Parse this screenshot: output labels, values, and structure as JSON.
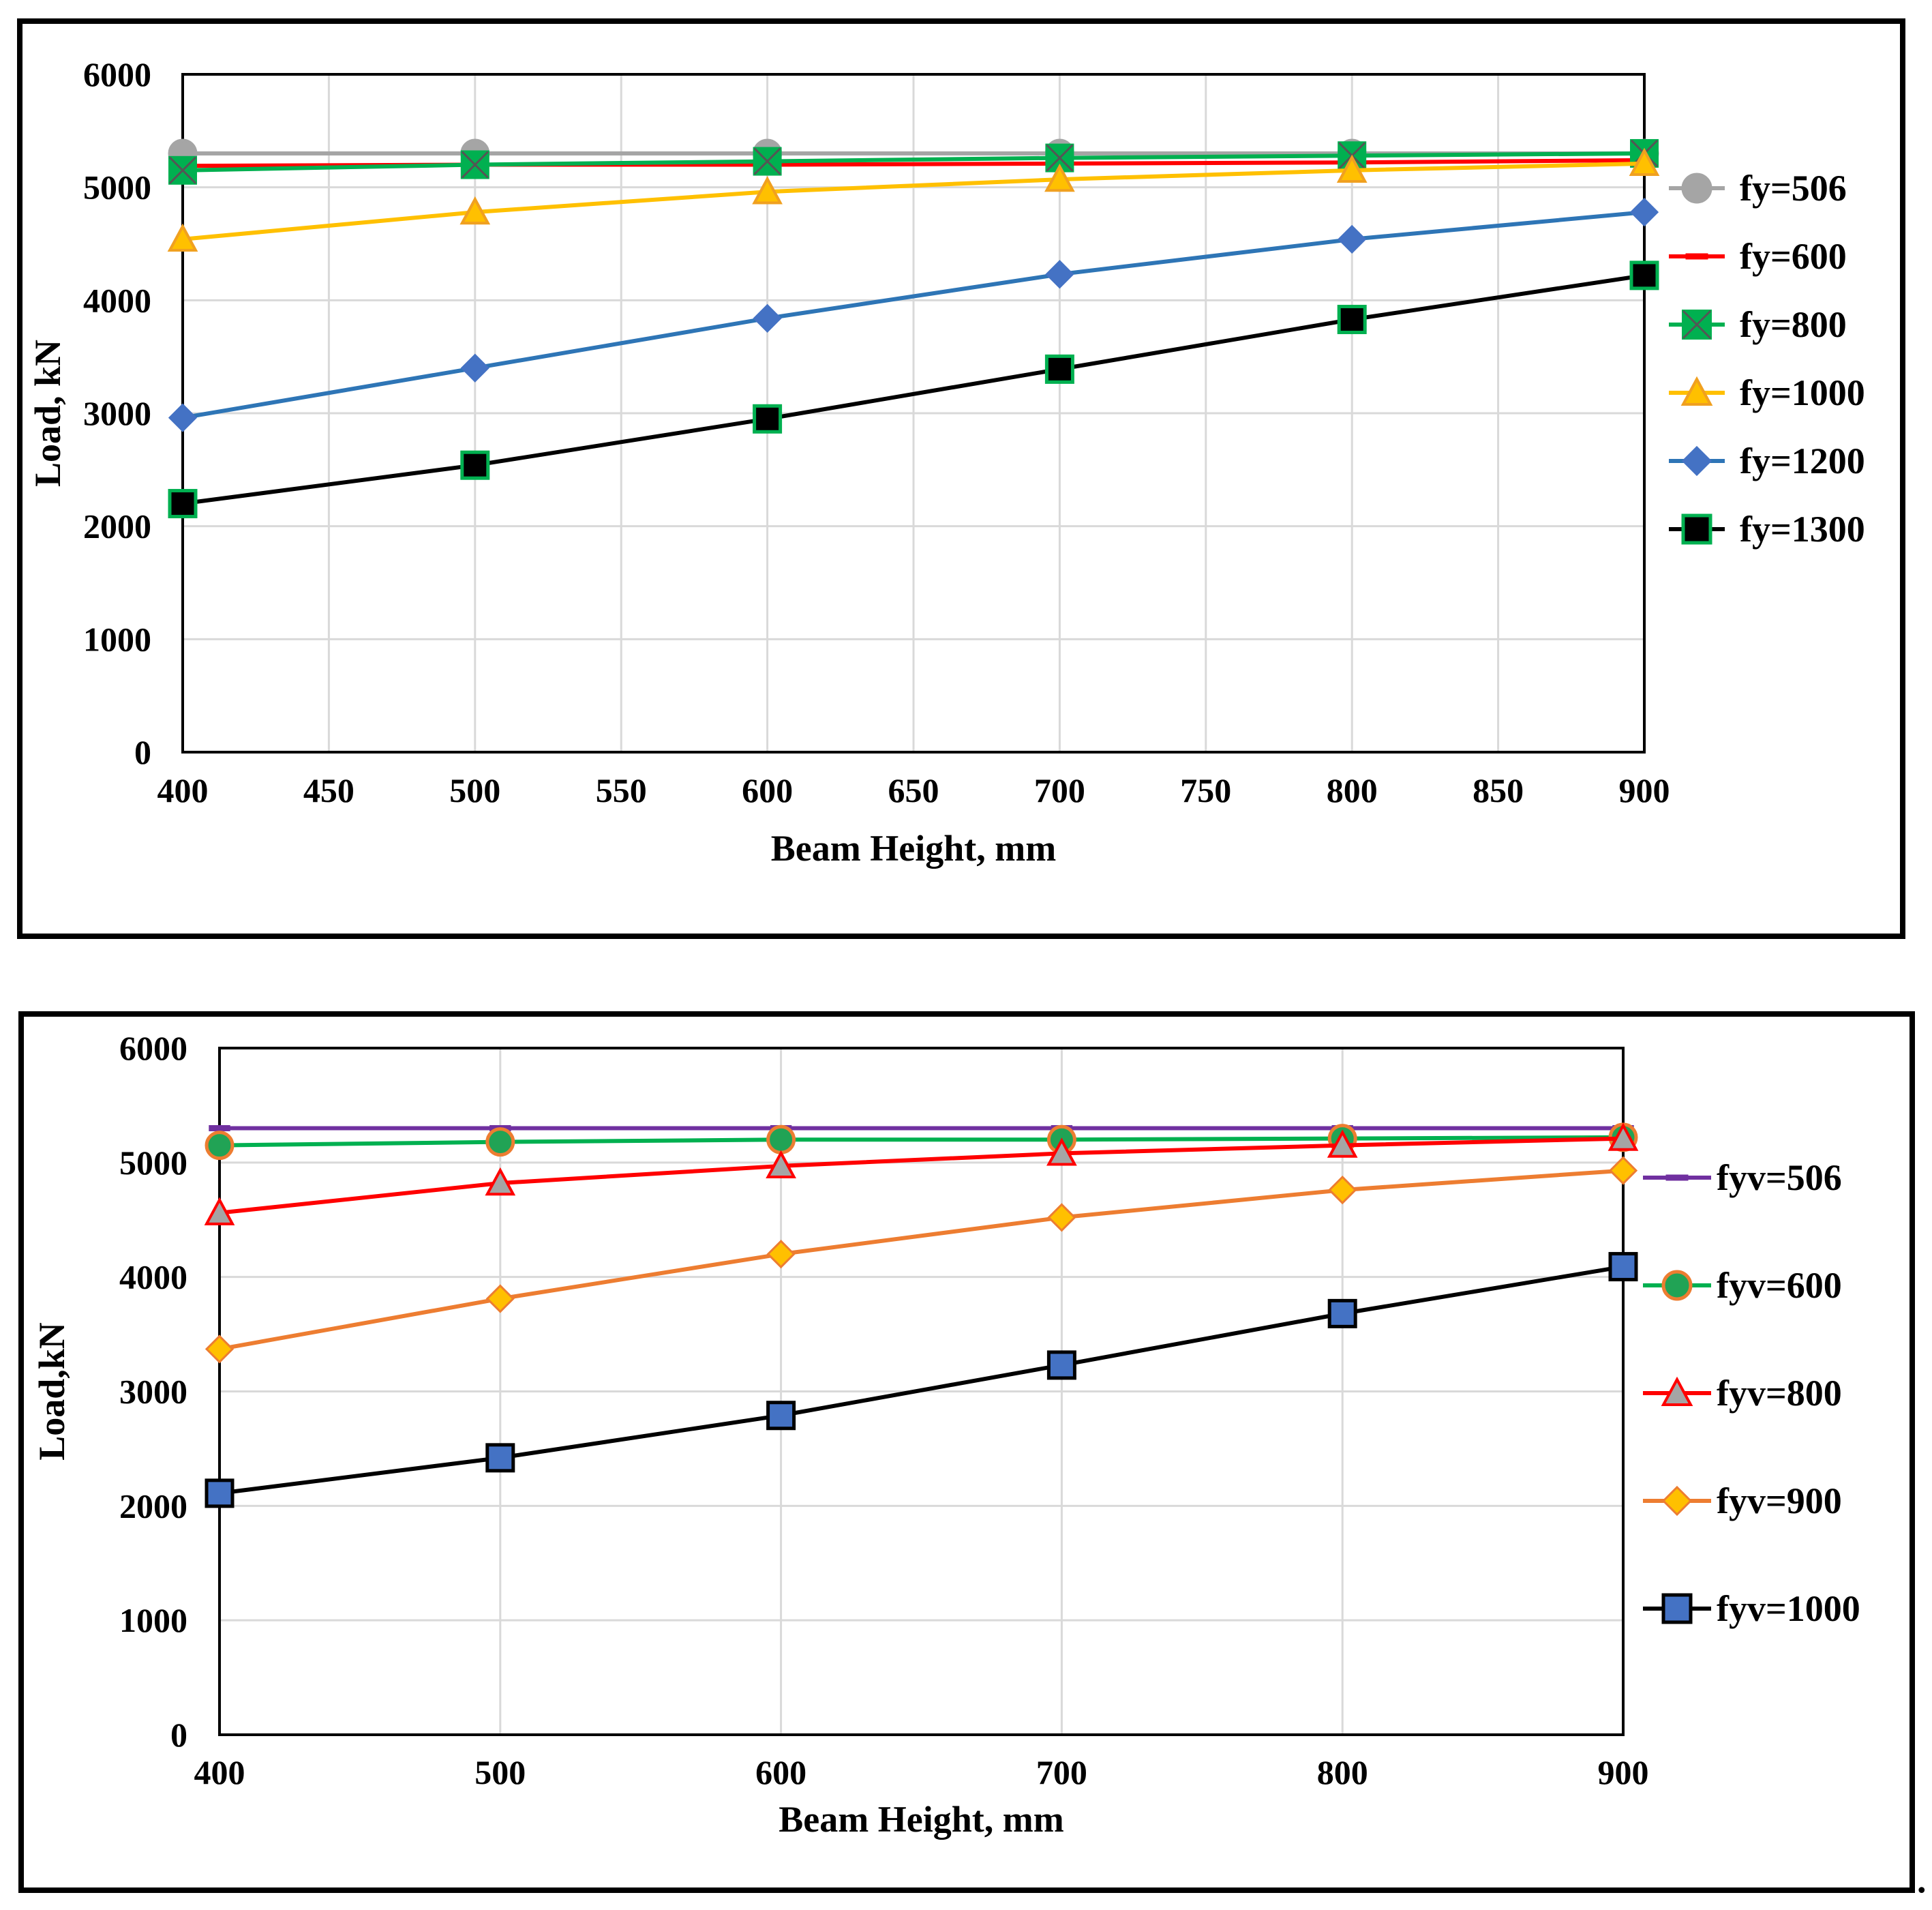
{
  "colors": {
    "gray": "#a5a5a5",
    "red": "#ff0000",
    "green": "#00b050",
    "green_marker": "#21a355",
    "yellow": "#ffc000",
    "orange_marker": "#f0a020",
    "blue": "#2e75b6",
    "blue_marker": "#4472c4",
    "black": "#000000",
    "purple": "#7030a0",
    "orange": "#ed7d31",
    "grid": "#d9d9d9"
  },
  "trailing_mark": ".",
  "chart_data": [
    {
      "type": "line",
      "xlabel": "Beam Height, mm",
      "ylabel": "Load, kN",
      "xlim": [
        400,
        900
      ],
      "ylim": [
        0,
        6000
      ],
      "x_ticks": [
        "400",
        "450",
        "500",
        "550",
        "600",
        "650",
        "700",
        "750",
        "800",
        "850",
        "900"
      ],
      "y_ticks": [
        "0",
        "1000",
        "2000",
        "3000",
        "4000",
        "5000",
        "6000"
      ],
      "grid": true,
      "legend_position": "right",
      "x": [
        400,
        500,
        600,
        700,
        800,
        900
      ],
      "series": [
        {
          "name": "fy=506",
          "values": [
            5300,
            5300,
            5300,
            5300,
            5300,
            5300
          ],
          "line": "gray",
          "marker": "circle",
          "marker_fill": "gray",
          "marker_stroke": "gray"
        },
        {
          "name": "fy=600",
          "values": [
            5190,
            5200,
            5200,
            5210,
            5220,
            5240
          ],
          "line": "red",
          "marker": "dash",
          "marker_fill": "red",
          "marker_stroke": "red"
        },
        {
          "name": "fy=800",
          "values": [
            5150,
            5200,
            5230,
            5260,
            5280,
            5300
          ],
          "line": "green",
          "marker": "xsquare",
          "marker_fill": "green",
          "marker_stroke": "green"
        },
        {
          "name": "fy=1000",
          "values": [
            4540,
            4780,
            4960,
            5070,
            5150,
            5210
          ],
          "line": "yellow",
          "marker": "triangle",
          "marker_fill": "yellow",
          "marker_stroke": "orange_marker"
        },
        {
          "name": "fy=1200",
          "values": [
            2960,
            3400,
            3840,
            4230,
            4540,
            4780
          ],
          "line": "blue",
          "marker": "diamond",
          "marker_fill": "blue_marker",
          "marker_stroke": "blue_marker"
        },
        {
          "name": "fy=1300",
          "values": [
            2200,
            2540,
            2950,
            3390,
            3830,
            4220
          ],
          "line": "black",
          "marker": "square",
          "marker_fill": "black",
          "marker_stroke": "green"
        }
      ]
    },
    {
      "type": "line",
      "xlabel": "Beam Height, mm",
      "ylabel": "Load,kN",
      "xlim": [
        400,
        900
      ],
      "ylim": [
        0,
        6000
      ],
      "x_ticks": [
        "400",
        "500",
        "600",
        "700",
        "800",
        "900"
      ],
      "y_ticks": [
        "0",
        "1000",
        "2000",
        "3000",
        "4000",
        "5000",
        "6000"
      ],
      "grid": true,
      "legend_position": "right",
      "x": [
        400,
        500,
        600,
        700,
        800,
        900
      ],
      "series": [
        {
          "name": "fyv=506",
          "values": [
            5300,
            5300,
            5300,
            5300,
            5300,
            5300
          ],
          "line": "purple",
          "marker": "dash",
          "marker_fill": "purple",
          "marker_stroke": "purple"
        },
        {
          "name": "fyv=600",
          "values": [
            5150,
            5180,
            5200,
            5200,
            5210,
            5220
          ],
          "line": "green",
          "marker": "circle",
          "marker_fill": "green_marker",
          "marker_stroke": "orange"
        },
        {
          "name": "fyv=800",
          "values": [
            4560,
            4820,
            4970,
            5080,
            5150,
            5210
          ],
          "line": "red",
          "marker": "triangle",
          "marker_fill": "gray",
          "marker_stroke": "red"
        },
        {
          "name": "fyv=900",
          "values": [
            3370,
            3810,
            4200,
            4520,
            4760,
            4930
          ],
          "line": "orange",
          "marker": "diamond",
          "marker_fill": "yellow",
          "marker_stroke": "orange"
        },
        {
          "name": "fyv=1000",
          "values": [
            2110,
            2420,
            2790,
            3230,
            3680,
            4090
          ],
          "line": "black",
          "marker": "square",
          "marker_fill": "blue_marker",
          "marker_stroke": "black"
        }
      ]
    }
  ]
}
